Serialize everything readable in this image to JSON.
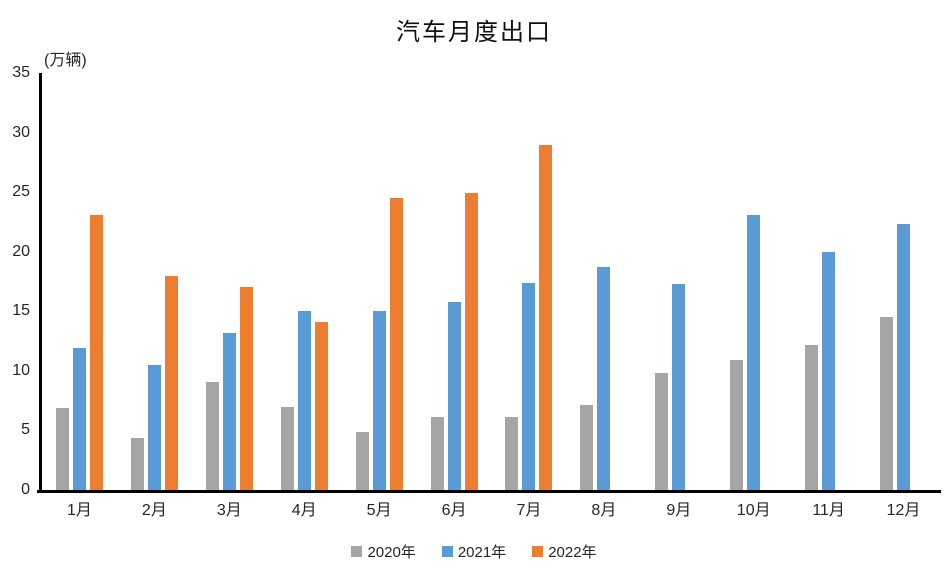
{
  "chart_data": {
    "type": "bar",
    "title": "汽车月度出口",
    "unit_label": "(万辆)",
    "xlabel": "",
    "ylabel": "万辆",
    "categories": [
      "1月",
      "2月",
      "3月",
      "4月",
      "5月",
      "6月",
      "7月",
      "8月",
      "9月",
      "10月",
      "11月",
      "12月"
    ],
    "series": [
      {
        "name": "2020年",
        "color": "#A5A5A5",
        "values": [
          6.9,
          4.4,
          9.1,
          7.0,
          4.9,
          6.1,
          6.1,
          7.1,
          9.8,
          10.9,
          12.2,
          14.5
        ]
      },
      {
        "name": "2021年",
        "color": "#5B9BD5",
        "values": [
          11.9,
          10.5,
          13.2,
          15.0,
          15.0,
          15.8,
          17.4,
          18.7,
          17.3,
          23.1,
          20.0,
          22.3
        ]
      },
      {
        "name": "2022年",
        "color": "#ED7D31",
        "values": [
          23.1,
          18.0,
          17.0,
          14.1,
          24.5,
          24.9,
          29.0,
          null,
          null,
          null,
          null,
          null
        ]
      }
    ],
    "y_axis": {
      "min": 0,
      "max": 35,
      "step": 5
    },
    "grid": false,
    "legend_position": "bottom",
    "axis_color": "#000000",
    "text_color": "#262626"
  }
}
